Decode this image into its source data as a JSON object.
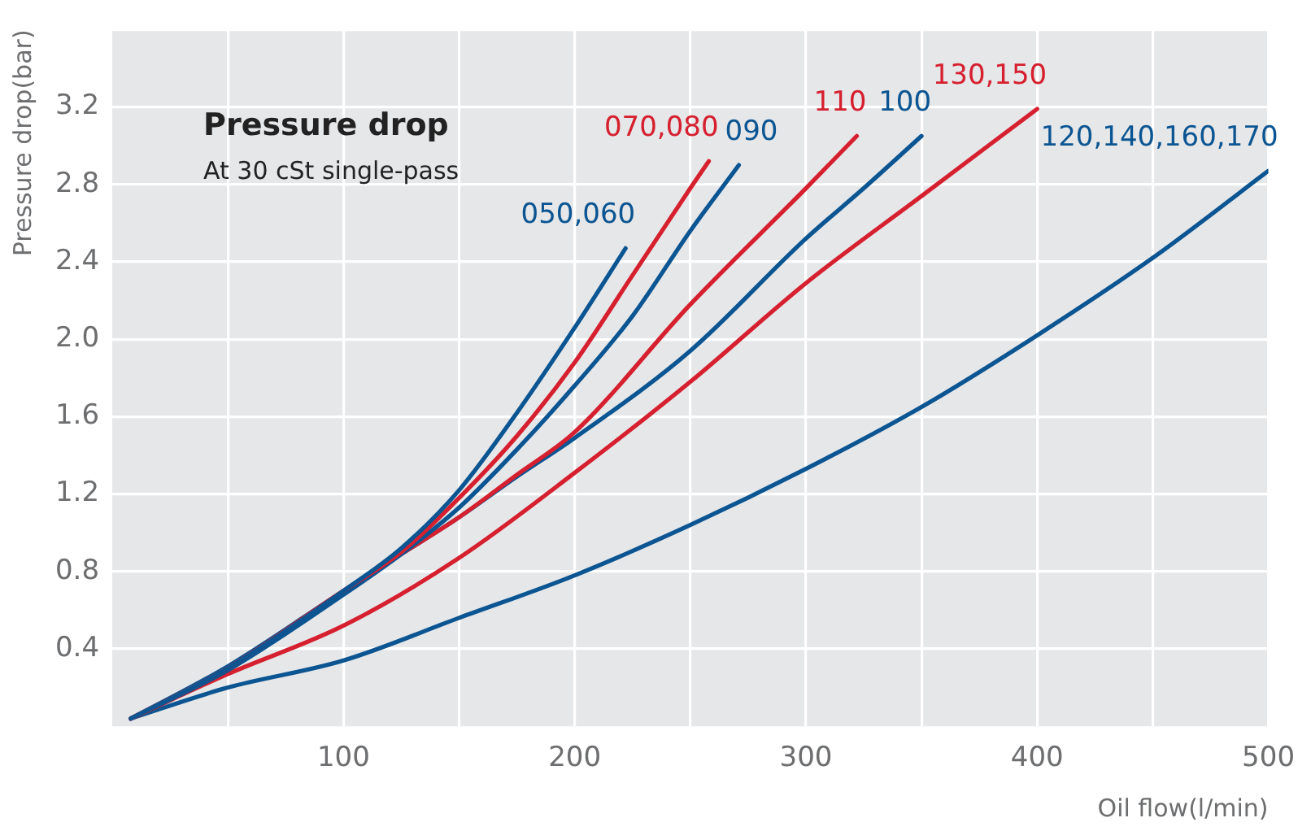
{
  "chart_data": {
    "type": "line",
    "title": "Pressure drop",
    "subtitle": "At 30 cSt single-pass",
    "xlabel": "Oil flow(l/min)",
    "ylabel": "Pressure drop(bar)",
    "xlim": [
      0,
      500
    ],
    "ylim": [
      0,
      3.6
    ],
    "xticks": [
      {
        "value": 50,
        "label": null
      },
      100,
      {
        "value": 150,
        "label": null
      },
      200,
      {
        "value": 250,
        "label": null
      },
      300,
      {
        "value": 350,
        "label": null
      },
      400,
      {
        "value": 450,
        "label": null
      },
      500
    ],
    "yticks": [
      0.4,
      0.8,
      1.2,
      1.6,
      {
        "value": 2,
        "label": "2.0"
      },
      2.4,
      2.8,
      3.2,
      {
        "value": 3.6,
        "label": null
      }
    ],
    "grid": true,
    "legend": false,
    "marker": "none",
    "series": [
      {
        "name": "050,060",
        "color": "#0b5592",
        "x": [
          8,
          50,
          100,
          125,
          150,
          175,
          200,
          222
        ],
        "values": [
          0.04,
          0.3,
          0.7,
          0.92,
          1.22,
          1.62,
          2.06,
          2.47
        ]
      },
      {
        "name": "070,080",
        "color": "#d6202f",
        "x": [
          8,
          50,
          100,
          125,
          150,
          175,
          200,
          225,
          250,
          258
        ],
        "values": [
          0.04,
          0.3,
          0.7,
          0.9,
          1.18,
          1.5,
          1.88,
          2.33,
          2.78,
          2.92
        ]
      },
      {
        "name": "090",
        "color": "#0b5592",
        "x": [
          8,
          50,
          100,
          125,
          150,
          175,
          200,
          225,
          250,
          271
        ],
        "values": [
          0.04,
          0.29,
          0.68,
          0.89,
          1.13,
          1.43,
          1.76,
          2.12,
          2.56,
          2.9
        ]
      },
      {
        "name": "110",
        "color": "#d6202f",
        "x": [
          8,
          50,
          100,
          125,
          150,
          175,
          200,
          250,
          300,
          322
        ],
        "values": [
          0.04,
          0.3,
          0.7,
          0.89,
          1.08,
          1.3,
          1.52,
          2.18,
          2.78,
          3.05
        ]
      },
      {
        "name": "100",
        "color": "#0b5592",
        "x": [
          8,
          50,
          100,
          125,
          150,
          175,
          200,
          250,
          300,
          325,
          350
        ],
        "values": [
          0.04,
          0.31,
          0.7,
          0.89,
          1.08,
          1.29,
          1.49,
          1.94,
          2.52,
          2.78,
          3.05
        ]
      },
      {
        "name": "130,150",
        "color": "#d6202f",
        "x": [
          8,
          50,
          100,
          150,
          200,
          250,
          300,
          350,
          400
        ],
        "values": [
          0.04,
          0.27,
          0.52,
          0.87,
          1.31,
          1.78,
          2.29,
          2.74,
          3.19
        ]
      },
      {
        "name": "120,140,160,170",
        "color": "#0b5592",
        "x": [
          8,
          50,
          100,
          150,
          200,
          250,
          300,
          350,
          400,
          450,
          500
        ],
        "values": [
          0.04,
          0.2,
          0.34,
          0.56,
          0.78,
          1.04,
          1.33,
          1.65,
          2.02,
          2.42,
          2.87
        ]
      }
    ]
  }
}
